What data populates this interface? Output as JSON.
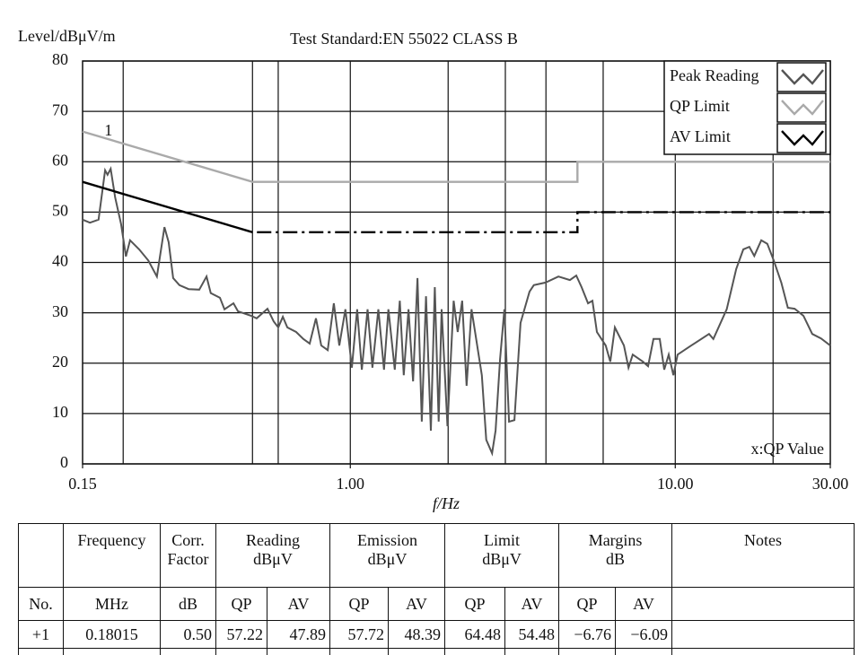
{
  "chart_data": {
    "type": "line",
    "title": "Test Standard:EN 55022 CLASS B",
    "ylabel": "Level/dBμV/m",
    "xlabel": "f/Hz",
    "annotation": "x:QP Value",
    "marker": {
      "label": "1",
      "x": 0.18015,
      "y": 57.72
    },
    "xscale": "log",
    "xlim": [
      0.15,
      30
    ],
    "ylim": [
      0,
      80
    ],
    "xticks": [
      0.15,
      {
        "value": 1,
        "label": "1.00"
      },
      {
        "value": 10,
        "label": "10.00"
      },
      {
        "value": 30,
        "label": "30.00"
      }
    ],
    "xgrid": [
      0.2,
      0.5,
      0.6,
      1,
      2,
      3,
      4,
      6,
      10,
      20
    ],
    "yticks": [
      0,
      10,
      20,
      30,
      40,
      50,
      60,
      70,
      80
    ],
    "grid": true,
    "legend": "top-right",
    "series": [
      {
        "name": "Peak Reading",
        "color": "#555555",
        "linestyle": "solid",
        "x": [
          0.15,
          0.158,
          0.168,
          0.176,
          0.179,
          0.183,
          0.189,
          0.197,
          0.204,
          0.21,
          0.224,
          0.239,
          0.254,
          0.268,
          0.276,
          0.285,
          0.298,
          0.318,
          0.343,
          0.361,
          0.372,
          0.397,
          0.41,
          0.437,
          0.451,
          0.496,
          0.515,
          0.556,
          0.581,
          0.6,
          0.62,
          0.64,
          0.681,
          0.717,
          0.75,
          0.784,
          0.814,
          0.852,
          0.89,
          0.925,
          0.966,
          1.011,
          1.05,
          1.085,
          1.13,
          1.17,
          1.22,
          1.27,
          1.31,
          1.37,
          1.42,
          1.46,
          1.51,
          1.56,
          1.61,
          1.66,
          1.71,
          1.77,
          1.82,
          1.87,
          1.91,
          1.99,
          2.08,
          2.14,
          2.21,
          2.28,
          2.36,
          2.54,
          2.62,
          2.73,
          2.8,
          2.89,
          2.98,
          3.08,
          3.2,
          3.34,
          3.56,
          3.67,
          3.99,
          4.37,
          4.74,
          4.96,
          5.15,
          5.39,
          5.56,
          5.74,
          6.11,
          6.31,
          6.52,
          6.95,
          7.18,
          7.4,
          7.95,
          8.25,
          8.57,
          8.96,
          9.25,
          9.55,
          9.87,
          10.17,
          11.2,
          12.7,
          13.1,
          14.4,
          15.4,
          16.2,
          16.9,
          17.5,
          18.4,
          19.2,
          20.1,
          21.2,
          22.2,
          23.3,
          24.8,
          26.4,
          28.1,
          30
        ],
        "values": [
          48.5,
          47.9,
          48.5,
          58.3,
          57.4,
          58.6,
          52.9,
          47.6,
          41.2,
          44.4,
          42.6,
          40.4,
          37.2,
          47.0,
          44.0,
          36.9,
          35.5,
          34.7,
          34.6,
          37.2,
          33.9,
          33.0,
          30.7,
          31.9,
          30.3,
          29.4,
          28.9,
          30.8,
          28.3,
          27.1,
          29.2,
          27.1,
          26.2,
          24.8,
          23.9,
          28.9,
          23.5,
          22.6,
          31.9,
          23.5,
          30.7,
          19.1,
          30.7,
          18.7,
          30.7,
          19.1,
          30.7,
          18.7,
          30.7,
          18.7,
          32.4,
          17.6,
          30.7,
          16.4,
          36.9,
          8.4,
          33.3,
          6.6,
          35.1,
          8.4,
          30.7,
          7.5,
          32.4,
          26.2,
          32.4,
          15.5,
          30.7,
          17.6,
          4.8,
          2.1,
          6.6,
          20.8,
          30.7,
          8.4,
          8.7,
          28.0,
          34.2,
          35.5,
          36.0,
          37.2,
          36.5,
          37.4,
          35.1,
          31.9,
          32.4,
          26.2,
          23.5,
          20.3,
          27.1,
          23.5,
          19.1,
          21.7,
          20.3,
          19.4,
          24.8,
          24.8,
          18.7,
          21.7,
          17.6,
          21.7,
          23.5,
          25.8,
          24.8,
          30.7,
          38.7,
          42.6,
          43.1,
          41.3,
          44.4,
          43.7,
          40.4,
          36.0,
          31.0,
          30.8,
          29.4,
          25.8,
          24.9,
          23.5
        ]
      },
      {
        "name": "QP Limit",
        "color": "#aaaaaa",
        "linestyle": "solid",
        "x": [
          0.15,
          0.5,
          5,
          5,
          30
        ],
        "values": [
          66,
          56,
          56,
          60,
          60
        ]
      },
      {
        "name": "AV Limit",
        "color": "#000000",
        "linestyle": "solid-then-dashdot",
        "x": [
          0.15,
          0.5,
          5,
          5,
          30
        ],
        "values": [
          56,
          46,
          46,
          50,
          50
        ]
      }
    ]
  },
  "table": {
    "header": [
      "Frequency",
      "Corr. Factor",
      "Reading dBμV",
      "Emission dBμV",
      "Limit dBμV",
      "Margins dB",
      "Notes"
    ],
    "units": [
      "No.",
      "MHz",
      "dB",
      "QP",
      "AV",
      "QP",
      "AV",
      "QP",
      "AV",
      "QP",
      "AV"
    ],
    "rows": [
      [
        "+1",
        "0.18015",
        "0.50",
        "57.22",
        "47.89",
        "57.72",
        "48.39",
        "64.48",
        "54.48",
        "−6.76",
        "−6.09"
      ]
    ]
  }
}
